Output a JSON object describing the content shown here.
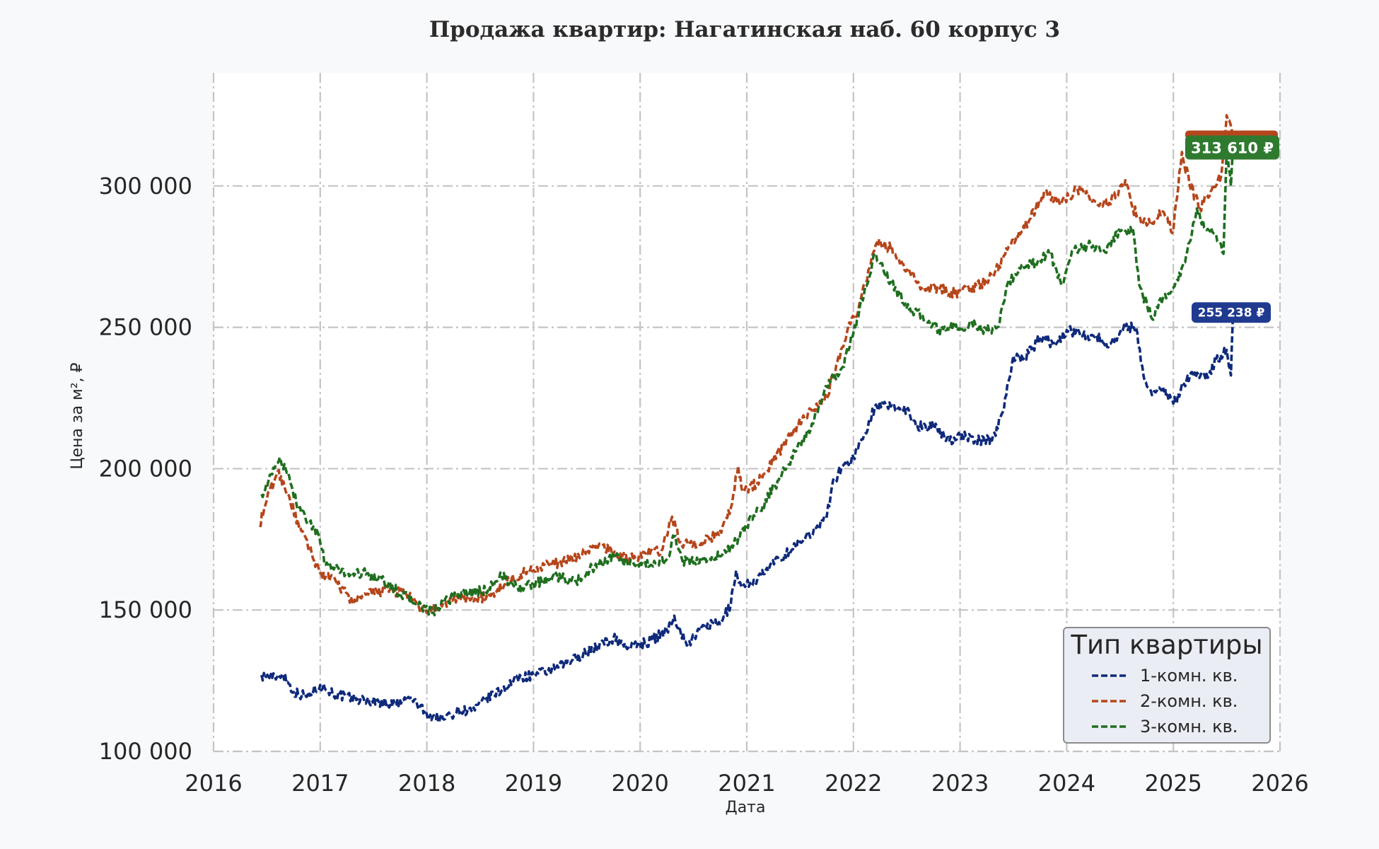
{
  "chart_data": {
    "type": "line",
    "title": "Продажа квартир: Нагатинская наб. 60 корпус 3",
    "xlabel": "Дата",
    "ylabel": "Цена за м², ₽",
    "xlim": [
      2016.0,
      2026.0
    ],
    "ylim": [
      100000,
      340000
    ],
    "x_ticks": [
      "2016",
      "2017",
      "2018",
      "2019",
      "2020",
      "2021",
      "2022",
      "2023",
      "2024",
      "2025",
      "2026"
    ],
    "y_ticks": [
      "100 000",
      "150 000",
      "200 000",
      "250 000",
      "300 000"
    ],
    "y_tick_values": [
      100000,
      150000,
      200000,
      250000,
      300000
    ],
    "grid": true,
    "legend": {
      "title": "Тип квартиры",
      "placement": "bottom-right"
    },
    "series": [
      {
        "name": "1-комн. кв.",
        "color": "#0f2a7a",
        "label_bg": "#1f3a8f",
        "end_label": "255 238 ₽",
        "points": [
          [
            2016.45,
            127000
          ],
          [
            2016.55,
            126000
          ],
          [
            2016.65,
            127500
          ],
          [
            2016.75,
            121000
          ],
          [
            2016.88,
            119500
          ],
          [
            2017.0,
            123500
          ],
          [
            2017.15,
            120000
          ],
          [
            2017.35,
            118500
          ],
          [
            2017.55,
            117500
          ],
          [
            2017.7,
            116500
          ],
          [
            2017.85,
            119000
          ],
          [
            2018.0,
            113000
          ],
          [
            2018.15,
            111500
          ],
          [
            2018.3,
            114500
          ],
          [
            2018.45,
            114500
          ],
          [
            2018.55,
            118500
          ],
          [
            2018.7,
            121500
          ],
          [
            2018.85,
            126000
          ],
          [
            2019.0,
            127000
          ],
          [
            2019.2,
            129000
          ],
          [
            2019.4,
            133000
          ],
          [
            2019.6,
            137000
          ],
          [
            2019.75,
            140000
          ],
          [
            2019.9,
            137000
          ],
          [
            2020.1,
            139000
          ],
          [
            2020.25,
            143000
          ],
          [
            2020.32,
            148000
          ],
          [
            2020.38,
            142000
          ],
          [
            2020.45,
            138000
          ],
          [
            2020.6,
            144500
          ],
          [
            2020.75,
            145000
          ],
          [
            2020.85,
            152000
          ],
          [
            2020.9,
            164000
          ],
          [
            2020.95,
            158000
          ],
          [
            2021.1,
            161000
          ],
          [
            2021.3,
            168000
          ],
          [
            2021.5,
            174000
          ],
          [
            2021.65,
            179000
          ],
          [
            2021.75,
            183000
          ],
          [
            2021.8,
            194000
          ],
          [
            2021.9,
            201000
          ],
          [
            2022.0,
            204000
          ],
          [
            2022.1,
            212000
          ],
          [
            2022.2,
            222000
          ],
          [
            2022.35,
            222000
          ],
          [
            2022.5,
            221000
          ],
          [
            2022.6,
            215000
          ],
          [
            2022.75,
            215000
          ],
          [
            2022.9,
            210000
          ],
          [
            2023.0,
            212000
          ],
          [
            2023.15,
            210000
          ],
          [
            2023.3,
            210000
          ],
          [
            2023.4,
            220000
          ],
          [
            2023.5,
            240000
          ],
          [
            2023.6,
            239000
          ],
          [
            2023.75,
            246000
          ],
          [
            2023.9,
            244000
          ],
          [
            2024.0,
            249000
          ],
          [
            2024.1,
            248000
          ],
          [
            2024.25,
            247000
          ],
          [
            2024.4,
            244000
          ],
          [
            2024.55,
            250000
          ],
          [
            2024.65,
            250000
          ],
          [
            2024.72,
            233000
          ],
          [
            2024.8,
            226000
          ],
          [
            2024.9,
            229000
          ],
          [
            2025.0,
            223000
          ],
          [
            2025.1,
            230000
          ],
          [
            2025.2,
            234000
          ],
          [
            2025.3,
            232000
          ],
          [
            2025.4,
            238000
          ],
          [
            2025.5,
            242000
          ],
          [
            2025.54,
            233000
          ],
          [
            2025.56,
            255238
          ]
        ]
      },
      {
        "name": "2-комн. кв.",
        "color": "#b5461b",
        "label_bg": "#b5461b",
        "end_label": "",
        "points": [
          [
            2016.43,
            180000
          ],
          [
            2016.5,
            189000
          ],
          [
            2016.6,
            199000
          ],
          [
            2016.7,
            191000
          ],
          [
            2016.8,
            179500
          ],
          [
            2016.92,
            170000
          ],
          [
            2017.0,
            163000
          ],
          [
            2017.15,
            160000
          ],
          [
            2017.3,
            153000
          ],
          [
            2017.45,
            155500
          ],
          [
            2017.6,
            157000
          ],
          [
            2017.8,
            156000
          ],
          [
            2017.95,
            150000
          ],
          [
            2018.1,
            150000
          ],
          [
            2018.25,
            154000
          ],
          [
            2018.45,
            154000
          ],
          [
            2018.6,
            155000
          ],
          [
            2018.75,
            160000
          ],
          [
            2018.9,
            163000
          ],
          [
            2019.1,
            166000
          ],
          [
            2019.3,
            167000
          ],
          [
            2019.5,
            171000
          ],
          [
            2019.65,
            173000
          ],
          [
            2019.75,
            170000
          ],
          [
            2019.9,
            168000
          ],
          [
            2020.05,
            170000
          ],
          [
            2020.2,
            171000
          ],
          [
            2020.3,
            183000
          ],
          [
            2020.38,
            174000
          ],
          [
            2020.5,
            173000
          ],
          [
            2020.65,
            175000
          ],
          [
            2020.75,
            178000
          ],
          [
            2020.85,
            186000
          ],
          [
            2020.92,
            201000
          ],
          [
            2020.96,
            192000
          ],
          [
            2021.1,
            195000
          ],
          [
            2021.25,
            203000
          ],
          [
            2021.45,
            214000
          ],
          [
            2021.6,
            221000
          ],
          [
            2021.75,
            225000
          ],
          [
            2021.85,
            238000
          ],
          [
            2021.95,
            250000
          ],
          [
            2022.05,
            257000
          ],
          [
            2022.15,
            271000
          ],
          [
            2022.22,
            280000
          ],
          [
            2022.35,
            278000
          ],
          [
            2022.5,
            270000
          ],
          [
            2022.65,
            264000
          ],
          [
            2022.8,
            264000
          ],
          [
            2022.95,
            262000
          ],
          [
            2023.1,
            264000
          ],
          [
            2023.25,
            266000
          ],
          [
            2023.4,
            274000
          ],
          [
            2023.5,
            281000
          ],
          [
            2023.65,
            288000
          ],
          [
            2023.8,
            298000
          ],
          [
            2023.95,
            294000
          ],
          [
            2024.1,
            299000
          ],
          [
            2024.25,
            295000
          ],
          [
            2024.4,
            294000
          ],
          [
            2024.55,
            302000
          ],
          [
            2024.62,
            292000
          ],
          [
            2024.75,
            286000
          ],
          [
            2024.9,
            291000
          ],
          [
            2025.0,
            284000
          ],
          [
            2025.08,
            312000
          ],
          [
            2025.15,
            301000
          ],
          [
            2025.25,
            292000
          ],
          [
            2025.35,
            298000
          ],
          [
            2025.45,
            304000
          ],
          [
            2025.5,
            325000
          ],
          [
            2025.56,
            318000
          ]
        ]
      },
      {
        "name": "3-комн. кв.",
        "color": "#1f6e1f",
        "label_bg": "#2f7a2f",
        "end_label": "313 610 ₽",
        "points": [
          [
            2016.45,
            191000
          ],
          [
            2016.55,
            198000
          ],
          [
            2016.62,
            204000
          ],
          [
            2016.72,
            195000
          ],
          [
            2016.8,
            186000
          ],
          [
            2016.9,
            181000
          ],
          [
            2016.98,
            177000
          ],
          [
            2017.05,
            166000
          ],
          [
            2017.25,
            163000
          ],
          [
            2017.45,
            163000
          ],
          [
            2017.6,
            160000
          ],
          [
            2017.75,
            156000
          ],
          [
            2017.92,
            152000
          ],
          [
            2018.05,
            149000
          ],
          [
            2018.25,
            155000
          ],
          [
            2018.4,
            156000
          ],
          [
            2018.55,
            157000
          ],
          [
            2018.7,
            162000
          ],
          [
            2018.85,
            158000
          ],
          [
            2019.0,
            159000
          ],
          [
            2019.2,
            162000
          ],
          [
            2019.4,
            160000
          ],
          [
            2019.55,
            165000
          ],
          [
            2019.75,
            169000
          ],
          [
            2019.9,
            166000
          ],
          [
            2020.1,
            166000
          ],
          [
            2020.25,
            168000
          ],
          [
            2020.32,
            176000
          ],
          [
            2020.4,
            167000
          ],
          [
            2020.6,
            168000
          ],
          [
            2020.75,
            169000
          ],
          [
            2020.9,
            174000
          ],
          [
            2021.0,
            180000
          ],
          [
            2021.15,
            187000
          ],
          [
            2021.3,
            196000
          ],
          [
            2021.45,
            206000
          ],
          [
            2021.6,
            214000
          ],
          [
            2021.75,
            229000
          ],
          [
            2021.9,
            236000
          ],
          [
            2022.0,
            248000
          ],
          [
            2022.1,
            262000
          ],
          [
            2022.2,
            276000
          ],
          [
            2022.35,
            266000
          ],
          [
            2022.5,
            257000
          ],
          [
            2022.65,
            254000
          ],
          [
            2022.8,
            249000
          ],
          [
            2022.95,
            250000
          ],
          [
            2023.1,
            251000
          ],
          [
            2023.25,
            249000
          ],
          [
            2023.35,
            250000
          ],
          [
            2023.45,
            266000
          ],
          [
            2023.6,
            271000
          ],
          [
            2023.75,
            274000
          ],
          [
            2023.85,
            276000
          ],
          [
            2023.95,
            265000
          ],
          [
            2024.05,
            277000
          ],
          [
            2024.2,
            279000
          ],
          [
            2024.35,
            277000
          ],
          [
            2024.5,
            284000
          ],
          [
            2024.62,
            285000
          ],
          [
            2024.68,
            265000
          ],
          [
            2024.8,
            253000
          ],
          [
            2024.9,
            260000
          ],
          [
            2025.0,
            264000
          ],
          [
            2025.1,
            273000
          ],
          [
            2025.15,
            280000
          ],
          [
            2025.22,
            292000
          ],
          [
            2025.3,
            285000
          ],
          [
            2025.4,
            283000
          ],
          [
            2025.47,
            276000
          ],
          [
            2025.5,
            313000
          ],
          [
            2025.54,
            300000
          ],
          [
            2025.56,
            313610
          ]
        ]
      }
    ]
  }
}
